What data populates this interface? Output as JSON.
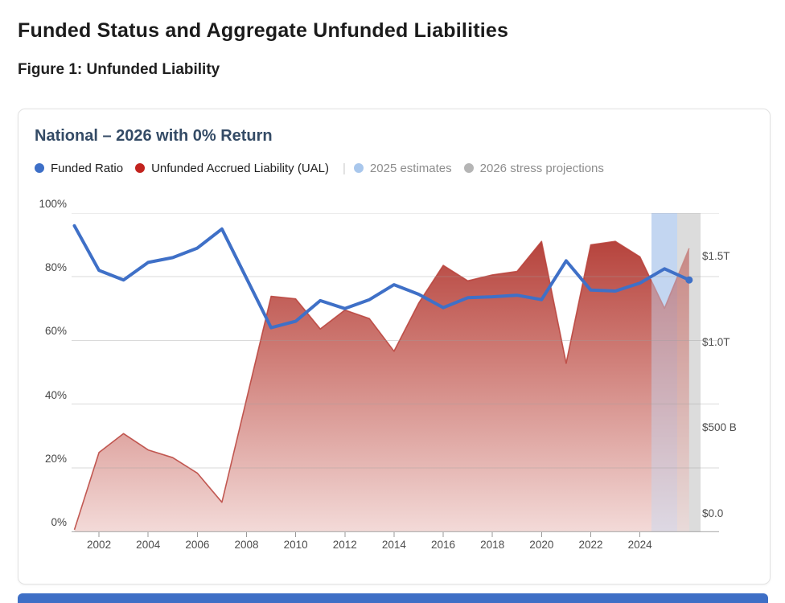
{
  "page": {
    "title": "Funded Status and Aggregate Unfunded Liabilities",
    "figure_label": "Figure 1: Unfunded Liability"
  },
  "card": {
    "title": "National – 2026 with 0% Return"
  },
  "legend": {
    "separator": "|",
    "items": [
      {
        "label": "Funded Ratio",
        "color": "#3d6fc7",
        "muted": false
      },
      {
        "label": "Unfunded Accrued Liability (UAL)",
        "color": "#c2231e",
        "muted": false
      },
      {
        "label": "2025 estimates",
        "color": "#a9c7ec",
        "muted": true
      },
      {
        "label": "2026 stress projections",
        "color": "#b5b5b5",
        "muted": true
      }
    ]
  },
  "colors": {
    "funded_line": "#3f70c7",
    "ual_top": "#b0352e",
    "ual_mid": "#cf7d77",
    "ual_bottom": "#f3dad8",
    "ual_edge": "#b8413a",
    "band_2025": "#c3d6f1",
    "band_2026": "#dcdcdc",
    "grid": "rgba(158,158,158,0.38)",
    "axis_line": "#b5b5b5",
    "tick": "#9a9a9a",
    "accent_bar": "#3e6fc6"
  },
  "chart_data": {
    "type": "area",
    "title": "National – 2026 with 0% Return",
    "x": [
      2001,
      2002,
      2003,
      2004,
      2005,
      2006,
      2007,
      2008,
      2009,
      2010,
      2011,
      2012,
      2013,
      2014,
      2015,
      2016,
      2017,
      2018,
      2019,
      2020,
      2021,
      2022,
      2023,
      2024,
      2025,
      2026
    ],
    "series": [
      {
        "name": "Funded Ratio",
        "type": "line",
        "axis": "left",
        "unit": "%",
        "values": [
          96,
          82,
          79,
          84.5,
          86,
          89,
          95,
          79.5,
          64,
          66,
          72.5,
          70,
          72.8,
          77.5,
          74.5,
          70.3,
          73.4,
          73.7,
          74.2,
          72.8,
          85,
          75.8,
          75.5,
          78,
          82.5,
          79
        ]
      },
      {
        "name": "Unfunded Accrued Liability (UAL)",
        "type": "area",
        "axis": "right",
        "unit": "$ billions",
        "values": [
          10,
          460,
          570,
          475,
          430,
          340,
          170,
          770,
          1370,
          1355,
          1180,
          1290,
          1240,
          1050,
          1330,
          1550,
          1460,
          1495,
          1515,
          1690,
          980,
          1670,
          1690,
          1600,
          1300,
          1650
        ]
      }
    ],
    "notes": [
      {
        "year": 2025,
        "label": "2025 estimates"
      },
      {
        "year": 2026,
        "label": "2026 stress projections"
      }
    ],
    "left_axis": {
      "labels": [
        "100%",
        "80%",
        "60%",
        "40%",
        "20%",
        "0%"
      ],
      "values": [
        100,
        80,
        60,
        40,
        20,
        0
      ],
      "min": 0,
      "max": 100
    },
    "right_axis": {
      "labels": [
        "$1.5T",
        "$1.0T",
        "$500 B",
        "$0.0"
      ],
      "values": [
        1500,
        1000,
        500,
        0
      ],
      "plot_max_billions": 1855
    },
    "x_axis": {
      "tick_years": [
        2002,
        2004,
        2006,
        2008,
        2010,
        2012,
        2014,
        2016,
        2018,
        2020,
        2022,
        2024
      ]
    },
    "bands": [
      {
        "label": "2025 estimates",
        "center_year": 2025,
        "x_from": 721,
        "x_to": 753,
        "color_key": "band_2025"
      },
      {
        "label": "2026 stress projections",
        "center_year": 2026,
        "x_from": 753,
        "x_to": 782,
        "color_key": "band_2026"
      }
    ],
    "grid": true,
    "legend_position": "top"
  }
}
